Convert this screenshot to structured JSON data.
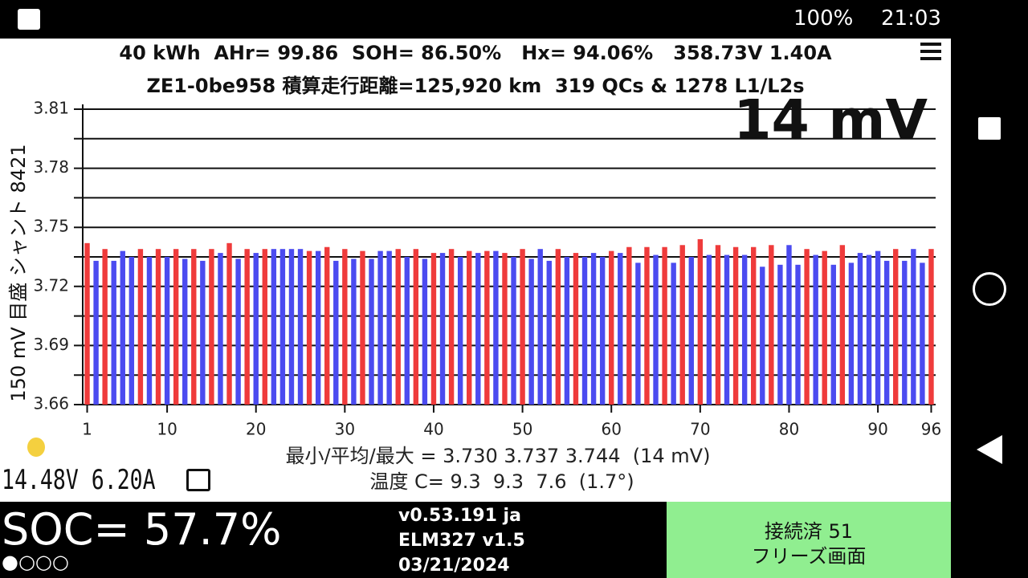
{
  "status_bar": {
    "battery": "100%",
    "time": "21:03"
  },
  "header": {
    "line1": "40 kWh  AHr= 99.86  SOH= 86.50%   Hx= 94.06%   358.73V 1.40A",
    "line2": "ZE1-0be958 積算走行距離=125,920 km  319 QCs & 1278 L1/L2s"
  },
  "chart_data": {
    "type": "bar",
    "annotation": "14 mV",
    "y_label": "150 mV 目盛 シャント 8421",
    "x": [
      1,
      2,
      3,
      4,
      5,
      6,
      7,
      8,
      9,
      10,
      11,
      12,
      13,
      14,
      15,
      16,
      17,
      18,
      19,
      20,
      21,
      22,
      23,
      24,
      25,
      26,
      27,
      28,
      29,
      30,
      31,
      32,
      33,
      34,
      35,
      36,
      37,
      38,
      39,
      40,
      41,
      42,
      43,
      44,
      45,
      46,
      47,
      48,
      49,
      50,
      51,
      52,
      53,
      54,
      55,
      56,
      57,
      58,
      59,
      60,
      61,
      62,
      63,
      64,
      65,
      66,
      67,
      68,
      69,
      70,
      71,
      72,
      73,
      74,
      75,
      76,
      77,
      78,
      79,
      80,
      81,
      82,
      83,
      84,
      85,
      86,
      87,
      88,
      89,
      90,
      91,
      92,
      93,
      94,
      95,
      96
    ],
    "values": [
      3.742,
      3.733,
      3.739,
      3.733,
      3.738,
      3.735,
      3.739,
      3.735,
      3.739,
      3.735,
      3.739,
      3.734,
      3.739,
      3.733,
      3.739,
      3.737,
      3.742,
      3.734,
      3.739,
      3.737,
      3.739,
      3.739,
      3.739,
      3.739,
      3.739,
      3.738,
      3.738,
      3.74,
      3.733,
      3.739,
      3.734,
      3.738,
      3.734,
      3.738,
      3.738,
      3.739,
      3.735,
      3.739,
      3.734,
      3.737,
      3.737,
      3.739,
      3.735,
      3.738,
      3.737,
      3.738,
      3.738,
      3.737,
      3.735,
      3.739,
      3.734,
      3.739,
      3.733,
      3.739,
      3.735,
      3.737,
      3.735,
      3.737,
      3.735,
      3.738,
      3.737,
      3.74,
      3.732,
      3.74,
      3.736,
      3.74,
      3.732,
      3.741,
      3.735,
      3.744,
      3.736,
      3.741,
      3.736,
      3.74,
      3.736,
      3.74,
      3.73,
      3.741,
      3.731,
      3.741,
      3.731,
      3.739,
      3.736,
      3.738,
      3.731,
      3.741,
      3.732,
      3.737,
      3.736,
      3.738,
      3.733,
      3.739,
      3.733,
      3.739,
      3.732,
      3.739
    ],
    "colors": [
      "#ef3b3b",
      "#4b4bf0",
      "#ef3b3b",
      "#4b4bf0",
      "#4b4bf0",
      "#4b4bf0",
      "#ef3b3b",
      "#4b4bf0",
      "#ef3b3b",
      "#4b4bf0",
      "#ef3b3b",
      "#4b4bf0",
      "#ef3b3b",
      "#4b4bf0",
      "#ef3b3b",
      "#4b4bf0",
      "#ef3b3b",
      "#4b4bf0",
      "#ef3b3b",
      "#4b4bf0",
      "#ef3b3b",
      "#4b4bf0",
      "#4b4bf0",
      "#4b4bf0",
      "#4b4bf0",
      "#ef3b3b",
      "#4b4bf0",
      "#ef3b3b",
      "#4b4bf0",
      "#ef3b3b",
      "#4b4bf0",
      "#ef3b3b",
      "#4b4bf0",
      "#4b4bf0",
      "#4b4bf0",
      "#ef3b3b",
      "#4b4bf0",
      "#ef3b3b",
      "#4b4bf0",
      "#ef3b3b",
      "#4b4bf0",
      "#ef3b3b",
      "#4b4bf0",
      "#ef3b3b",
      "#4b4bf0",
      "#ef3b3b",
      "#4b4bf0",
      "#ef3b3b",
      "#4b4bf0",
      "#ef3b3b",
      "#4b4bf0",
      "#4b4bf0",
      "#4b4bf0",
      "#ef3b3b",
      "#4b4bf0",
      "#ef3b3b",
      "#4b4bf0",
      "#4b4bf0",
      "#4b4bf0",
      "#ef3b3b",
      "#4b4bf0",
      "#ef3b3b",
      "#4b4bf0",
      "#ef3b3b",
      "#4b4bf0",
      "#ef3b3b",
      "#4b4bf0",
      "#ef3b3b",
      "#4b4bf0",
      "#ef3b3b",
      "#4b4bf0",
      "#ef3b3b",
      "#4b4bf0",
      "#ef3b3b",
      "#4b4bf0",
      "#ef3b3b",
      "#4b4bf0",
      "#ef3b3b",
      "#4b4bf0",
      "#4b4bf0",
      "#4b4bf0",
      "#ef3b3b",
      "#4b4bf0",
      "#ef3b3b",
      "#4b4bf0",
      "#ef3b3b",
      "#4b4bf0",
      "#4b4bf0",
      "#4b4bf0",
      "#4b4bf0",
      "#4b4bf0",
      "#ef3b3b",
      "#4b4bf0",
      "#4b4bf0",
      "#4b4bf0",
      "#ef3b3b"
    ],
    "xlim": [
      0.5,
      96.5
    ],
    "xticks": [
      1,
      10,
      20,
      30,
      40,
      50,
      60,
      70,
      80,
      90,
      96
    ],
    "ylim": [
      3.66,
      3.81
    ],
    "yticks": [
      3.66,
      3.69,
      3.72,
      3.75,
      3.78,
      3.81
    ],
    "minor_yticks": [
      3.675,
      3.705,
      3.735,
      3.765,
      3.795
    ],
    "grid": true
  },
  "stats": {
    "line1": "最小/平均/最大 = 3.730 3.737 3.744  (14 mV)",
    "line2": "温度 C= 9.3  9.3  7.6  (1.7°)"
  },
  "readout": "14.48V 6.20A",
  "bottom": {
    "soc": "SOC= 57.7%",
    "indicator": "●○○○",
    "version": [
      "v0.53.191 ja",
      "ELM327 v1.5",
      "03/21/2024"
    ],
    "status": [
      "接続済 51",
      "フリーズ画面"
    ]
  }
}
